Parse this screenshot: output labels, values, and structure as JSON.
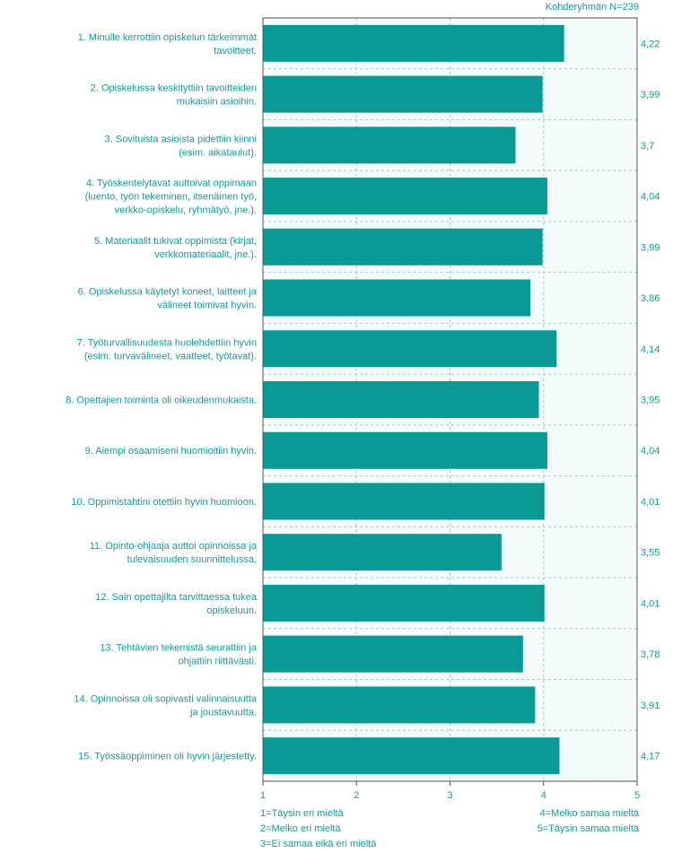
{
  "header": {
    "n_label": "Kohderyhmän N=239"
  },
  "legend": {
    "left": [
      "1=Täysin eri mieltä",
      "2=Melko eri mieltä",
      "3=Ei samaa eikä eri mieltä"
    ],
    "right": [
      "4=Melko samaa mieltä",
      "5=Täysin samaa mieltä"
    ]
  },
  "colors": {
    "bar": "#0a9a96",
    "plot_bg": "#f3fbfb",
    "text": "#1a9a9a",
    "axis": "#555555",
    "grid": "#b0c8c8"
  },
  "chart_data": {
    "type": "bar",
    "orientation": "horizontal",
    "xlim": [
      1,
      5
    ],
    "xticks": [
      "1",
      "2",
      "3",
      "4",
      "5"
    ],
    "grid": true,
    "categories": [
      [
        "1. Minulle kerrottiin opiskelun tärkeimmät",
        "tavoitteet."
      ],
      [
        "2. Opiskelussa keskityttiin tavoitteiden",
        "mukaisiin asioihin."
      ],
      [
        "3. Sovituista asioista pidettiin kiinni",
        "(esim. aikataulut)."
      ],
      [
        "4. Työskentelytavat auttoivat oppimaan",
        "(luento, työn tekeminen, itsenäinen työ,",
        "verkko-opiskelu, ryhmätyö, jne.)."
      ],
      [
        "5. Materiaalit tukivat oppimista (kirjat,",
        "verkkomateriaalit, jne.)."
      ],
      [
        "6. Opiskelussa käytetyt koneet, laitteet ja",
        "välineet toimivat hyvin."
      ],
      [
        "7. Työturvallisuudesta huolehdettiin hyvin",
        "(esim. turvavälineet, vaatteet, työtavat)."
      ],
      [
        "8. Opettajien toiminta oli oikeudenmukaista."
      ],
      [
        "9. Aiempi osaamiseni huomioitiin hyvin."
      ],
      [
        "10. Oppimistahtini otettiin hyvin huomioon."
      ],
      [
        "11. Opinto-ohjaaja auttoi opinnoissa ja",
        "tulevaisuuden suunnittelussa."
      ],
      [
        "12. Sain opettajilta tarvittaessa tukea",
        "opiskeluun."
      ],
      [
        "13. Tehtävien tekemistä seurattiin ja",
        "ohjattiin riittävästi."
      ],
      [
        "14. Opinnoissa oli sopivasti valinnaisuutta",
        "ja joustavuutta."
      ],
      [
        "15. Työssäoppiminen oli hyvin järjestetty."
      ]
    ],
    "values": [
      4.22,
      3.99,
      3.7,
      4.04,
      3.99,
      3.86,
      4.14,
      3.95,
      4.04,
      4.01,
      3.55,
      4.01,
      3.78,
      3.91,
      4.17
    ],
    "value_labels": [
      "4,22",
      "3,99",
      "3,7",
      "4,04",
      "3,99",
      "3,86",
      "4,14",
      "3,95",
      "4,04",
      "4,01",
      "3,55",
      "4,01",
      "3,78",
      "3,91",
      "4,17"
    ]
  }
}
